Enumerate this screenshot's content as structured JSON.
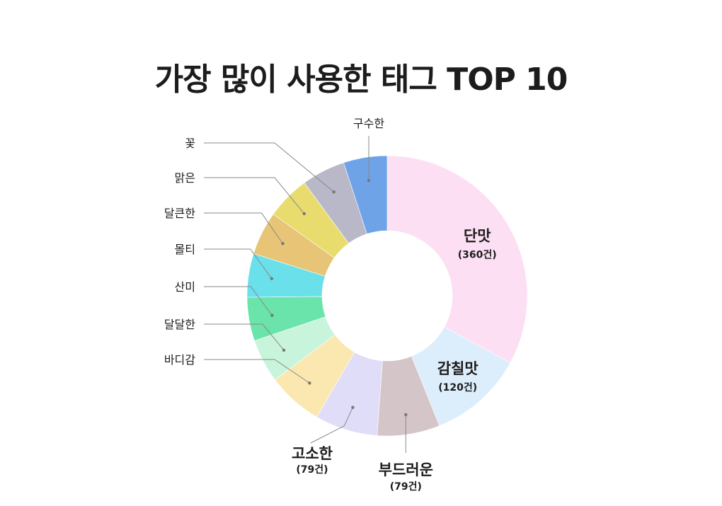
{
  "title": "가장 많이 사용한 태그 TOP 10",
  "chart_data": {
    "type": "pie",
    "title": "가장 많이 사용한 태그 TOP 10",
    "slices": [
      {
        "label": "단맛",
        "value": 360,
        "count_label": "(360건)",
        "color": "#fcdff3",
        "emphasis": true
      },
      {
        "label": "감칠맛",
        "value": 120,
        "count_label": "(120건)",
        "color": "#dcedfb",
        "emphasis": true
      },
      {
        "label": "부드러운",
        "value": 79,
        "count_label": "(79건)",
        "color": "#d4c5c9",
        "emphasis": true
      },
      {
        "label": "고소한",
        "value": 79,
        "count_label": "(79건)",
        "color": "#e0ddf9",
        "emphasis": true
      },
      {
        "label": "바디감",
        "value": 70,
        "count_label": "",
        "color": "#fbe8b0",
        "emphasis": false
      },
      {
        "label": "달달한",
        "value": 55,
        "count_label": "",
        "color": "#c9f4dc",
        "emphasis": false
      },
      {
        "label": "산미",
        "value": 55,
        "count_label": "",
        "color": "#6ae4aa",
        "emphasis": false
      },
      {
        "label": "몰티",
        "value": 55,
        "count_label": "",
        "color": "#6ae0ea",
        "emphasis": false
      },
      {
        "label": "달큰한",
        "value": 55,
        "count_label": "",
        "color": "#e8c576",
        "emphasis": false
      },
      {
        "label": "맑은",
        "value": 55,
        "count_label": "",
        "color": "#e9dc6e",
        "emphasis": false
      },
      {
        "label": "꽃",
        "value": 55,
        "count_label": "",
        "color": "#b9b8c8",
        "emphasis": false
      },
      {
        "label": "구수한",
        "value": 55,
        "count_label": "",
        "color": "#6fa3e8",
        "emphasis": false
      }
    ],
    "legend": "none"
  }
}
